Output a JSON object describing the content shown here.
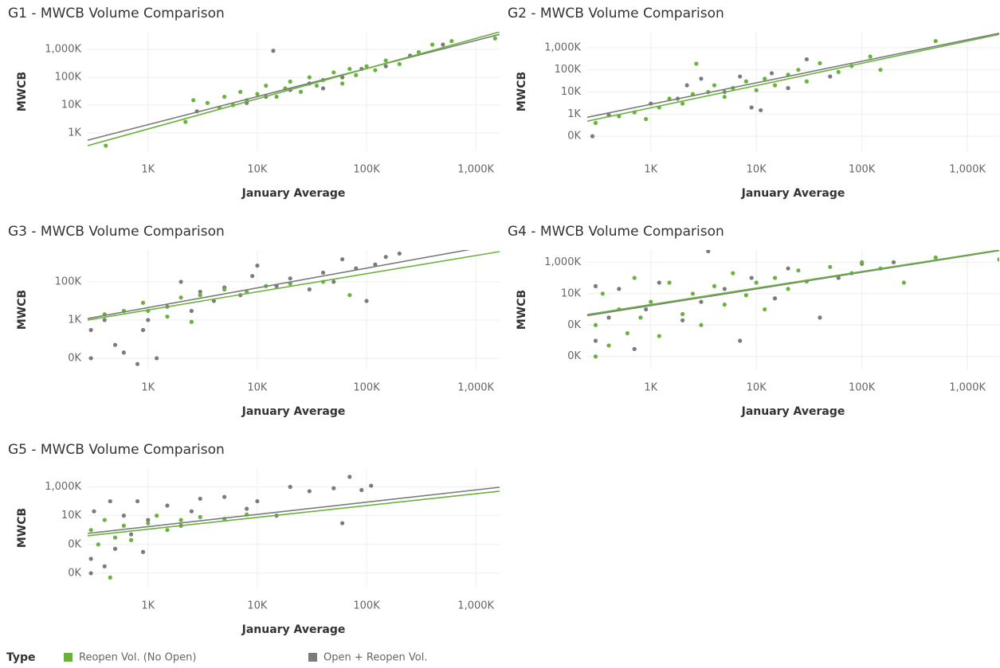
{
  "legend": {
    "title": "Type",
    "series": [
      {
        "name": "Reopen Vol. (No Open)",
        "color": "#6ab23e"
      },
      {
        "name": "Open + Reopen Vol.",
        "color": "#7b7b7b"
      }
    ]
  },
  "chart_data": [
    {
      "type": "scatter",
      "title": "G1 - MWCB Volume Comparison",
      "x_label": "January Average",
      "y_label": "MWCB",
      "xscale": "log",
      "yscale": "log",
      "grid": true,
      "xlim": [
        280,
        1650000
      ],
      "ylim": [
        220,
        4300000
      ],
      "xticks": [
        {
          "value": 1000,
          "label": "1K"
        },
        {
          "value": 10000,
          "label": "10K"
        },
        {
          "value": 100000,
          "label": "100K"
        },
        {
          "value": 1000000,
          "label": "1,000K"
        }
      ],
      "yticks": [
        {
          "value": 1000,
          "label": "1K"
        },
        {
          "value": 10000,
          "label": "10K"
        },
        {
          "value": 100000,
          "label": "100K"
        },
        {
          "value": 1000000,
          "label": "1,000K"
        }
      ],
      "series": [
        {
          "x": [
            410,
            2200,
            2600,
            3500,
            4500,
            5000,
            6000,
            7000,
            8000,
            10000,
            12000,
            15000,
            18000,
            20000,
            25000,
            30000,
            35000,
            40000,
            50000,
            60000,
            70000,
            80000,
            100000,
            120000,
            150000,
            200000,
            300000,
            400000,
            600000,
            1500000
          ],
          "values": [
            350,
            2500,
            15000,
            12000,
            8000,
            20000,
            10000,
            30000,
            15000,
            25000,
            50000,
            20000,
            40000,
            70000,
            30000,
            100000,
            50000,
            80000,
            150000,
            60000,
            200000,
            120000,
            250000,
            180000,
            400000,
            300000,
            800000,
            1500000,
            2000000,
            2500000
          ],
          "trend": {
            "x": [
              280,
              1650000
            ],
            "values": [
              350,
              4300000
            ]
          }
        },
        {
          "x": [
            2800,
            8000,
            12000,
            14000,
            20000,
            30000,
            40000,
            60000,
            90000,
            150000,
            250000,
            500000
          ],
          "values": [
            6000,
            12000,
            20000,
            900000,
            35000,
            60000,
            40000,
            100000,
            200000,
            250000,
            600000,
            1500000
          ],
          "trend": {
            "x": [
              280,
              1650000
            ],
            "values": [
              550,
              3500000
            ]
          }
        }
      ]
    },
    {
      "type": "scatter",
      "title": "G2 - MWCB Volume Comparison",
      "x_label": "January Average",
      "y_label": "MWCB",
      "xscale": "log",
      "yscale": "log",
      "grid": true,
      "xlim": [
        250,
        2000000
      ],
      "ylim": [
        21,
        5200000
      ],
      "xticks": [
        {
          "value": 1000,
          "label": "1K"
        },
        {
          "value": 10000,
          "label": "10K"
        },
        {
          "value": 100000,
          "label": "100K"
        },
        {
          "value": 1000000,
          "label": "1,000K"
        }
      ],
      "yticks": [
        {
          "value": 100,
          "label": "0K"
        },
        {
          "value": 1000,
          "label": "1K"
        },
        {
          "value": 10000,
          "label": "10K"
        },
        {
          "value": 100000,
          "label": "100K"
        },
        {
          "value": 1000000,
          "label": "1,000K"
        }
      ],
      "series": [
        {
          "x": [
            300,
            500,
            700,
            900,
            1200,
            1500,
            2000,
            2500,
            2700,
            3500,
            4000,
            5000,
            6000,
            8000,
            10000,
            12000,
            15000,
            20000,
            25000,
            30000,
            40000,
            60000,
            80000,
            120000,
            150000,
            500000
          ],
          "values": [
            400,
            800,
            1200,
            600,
            2000,
            5000,
            3000,
            8000,
            190000,
            10000,
            20000,
            6000,
            15000,
            30000,
            12000,
            40000,
            20000,
            60000,
            100000,
            30000,
            200000,
            80000,
            150000,
            400000,
            100000,
            2000000
          ],
          "trend": {
            "x": [
              250,
              2000000
            ],
            "values": [
              480,
              4000000
            ]
          }
        },
        {
          "x": [
            280,
            400,
            1000,
            1800,
            2200,
            3000,
            5000,
            7000,
            9000,
            11000,
            14000,
            20000,
            30000,
            50000
          ],
          "values": [
            100,
            900,
            3000,
            5000,
            20000,
            40000,
            10000,
            50000,
            2000,
            1500,
            70000,
            15000,
            300000,
            50000
          ],
          "trend": {
            "x": [
              250,
              2000000
            ],
            "values": [
              720,
              4500000
            ]
          }
        }
      ]
    },
    {
      "type": "scatter",
      "title": "G3 - MWCB Volume Comparison",
      "x_label": "January Average",
      "y_label": "MWCB",
      "xscale": "log",
      "yscale": "log",
      "grid": true,
      "xlim": [
        280,
        1650000
      ],
      "ylim": [
        2.6,
        4600000
      ],
      "xticks": [
        {
          "value": 1000,
          "label": "1K"
        },
        {
          "value": 10000,
          "label": "10K"
        },
        {
          "value": 100000,
          "label": "100K"
        },
        {
          "value": 1000000,
          "label": "1,000K"
        }
      ],
      "yticks": [
        {
          "value": 10,
          "label": "0K"
        },
        {
          "value": 1000,
          "label": "1K"
        },
        {
          "value": 100000,
          "label": "100K"
        }
      ],
      "series": [
        {
          "x": [
            400,
            600,
            900,
            1000,
            1500,
            2000,
            2500,
            3000,
            5000,
            8000,
            12000,
            20000,
            40000,
            70000
          ],
          "values": [
            2000,
            3000,
            8000,
            3000,
            1500,
            15000,
            800,
            20000,
            40000,
            30000,
            60000,
            80000,
            100000,
            20000
          ],
          "trend": {
            "x": [
              280,
              1650000
            ],
            "values": [
              1000,
              3800000
            ]
          }
        },
        {
          "x": [
            300,
            300,
            400,
            500,
            600,
            800,
            900,
            1000,
            1200,
            1500,
            2000,
            2500,
            3000,
            4000,
            5000,
            7000,
            9000,
            10000,
            15000,
            20000,
            30000,
            40000,
            50000,
            60000,
            80000,
            100000,
            120000,
            150000,
            200000
          ],
          "values": [
            10,
            300,
            1000,
            50,
            20,
            5,
            300,
            1000,
            10,
            5000,
            100000,
            3000,
            30000,
            10000,
            50000,
            20000,
            200000,
            700000,
            60000,
            150000,
            40000,
            300000,
            100000,
            1500000,
            500000,
            10000,
            800000,
            2000000,
            3000000
          ],
          "trend": {
            "x": [
              280,
              900000
            ],
            "values": [
              1200,
              5000000
            ]
          }
        }
      ]
    },
    {
      "type": "scatter",
      "title": "G4 - MWCB Volume Comparison",
      "x_label": "January Average",
      "y_label": "MWCB",
      "xscale": "log",
      "yscale": "log",
      "grid": true,
      "xlim": [
        250,
        2000000
      ],
      "ylim": [
        0.15,
        6000000
      ],
      "xticks": [
        {
          "value": 1000,
          "label": "1K"
        },
        {
          "value": 10000,
          "label": "10K"
        },
        {
          "value": 100000,
          "label": "100K"
        },
        {
          "value": 1000000,
          "label": "1,000K"
        }
      ],
      "yticks": [
        {
          "value": 1,
          "label": "0K"
        },
        {
          "value": 100,
          "label": "0K"
        },
        {
          "value": 10000,
          "label": "10K"
        },
        {
          "value": 1000000,
          "label": "1,000K"
        }
      ],
      "series": [
        {
          "x": [
            300,
            300,
            350,
            400,
            500,
            600,
            700,
            800,
            1000,
            1200,
            1500,
            2000,
            2500,
            3000,
            4000,
            5000,
            6000,
            8000,
            10000,
            12000,
            15000,
            20000,
            25000,
            30000,
            50000,
            80000,
            100000,
            150000,
            250000,
            500000,
            2000000
          ],
          "values": [
            1,
            100,
            10000,
            5,
            1000,
            30,
            100000,
            300,
            3000,
            20,
            50000,
            500,
            10000,
            100,
            30000,
            2000,
            200000,
            8000,
            50000,
            1000,
            100000,
            20000,
            300000,
            60000,
            500000,
            200000,
            1000000,
            400000,
            50000,
            2000000,
            1500000
          ],
          "trend": {
            "x": [
              250,
              2000000
            ],
            "values": [
              470,
              6000000
            ]
          }
        },
        {
          "x": [
            300,
            300,
            400,
            500,
            700,
            900,
            1200,
            2000,
            3000,
            3500,
            5000,
            7000,
            9000,
            15000,
            20000,
            40000,
            60000,
            100000,
            200000
          ],
          "values": [
            10,
            30000,
            300,
            20000,
            3,
            1000,
            50000,
            200,
            3000,
            5000000,
            20000,
            10,
            100000,
            5000,
            400000,
            300,
            100000,
            800000,
            1000000
          ],
          "trend": {
            "x": [
              250,
              2000000
            ],
            "values": [
              400,
              5500000
            ]
          }
        }
      ]
    },
    {
      "type": "scatter",
      "title": "G5 - MWCB Volume Comparison",
      "x_label": "January Average",
      "y_label": "MWCB",
      "xscale": "log",
      "yscale": "log",
      "grid": true,
      "xlim": [
        280,
        1650000
      ],
      "ylim": [
        0.1,
        20000000
      ],
      "xticks": [
        {
          "value": 1000,
          "label": "1K"
        },
        {
          "value": 10000,
          "label": "10K"
        },
        {
          "value": 100000,
          "label": "100K"
        },
        {
          "value": 1000000,
          "label": "1,000K"
        }
      ],
      "yticks": [
        {
          "value": 1,
          "label": "0K"
        },
        {
          "value": 100,
          "label": "0K"
        },
        {
          "value": 10000,
          "label": "10K"
        },
        {
          "value": 1000000,
          "label": "1,000K"
        }
      ],
      "series": [
        {
          "x": [
            300,
            350,
            400,
            450,
            500,
            600,
            700,
            1000,
            1200,
            1500,
            2000,
            3000,
            5000,
            8000
          ],
          "values": [
            1000,
            100,
            5000,
            0.5,
            300,
            2000,
            200,
            3000,
            10000,
            1000,
            5000,
            8000,
            6000,
            12000
          ],
          "trend": {
            "x": [
              280,
              1650000
            ],
            "values": [
              400,
              500000
            ]
          }
        },
        {
          "x": [
            300,
            300,
            320,
            400,
            450,
            500,
            600,
            700,
            800,
            900,
            1000,
            1500,
            2000,
            2500,
            3000,
            5000,
            8000,
            10000,
            15000,
            20000,
            30000,
            50000,
            60000,
            70000,
            90000,
            110000
          ],
          "values": [
            10,
            1,
            20000,
            3,
            100000,
            50,
            10000,
            500,
            100000,
            30,
            5000,
            50000,
            2000,
            20000,
            150000,
            200000,
            30000,
            100000,
            10000,
            1000000,
            500000,
            800000,
            3000,
            5000000,
            600000,
            1200000
          ],
          "trend": {
            "x": [
              280,
              1650000
            ],
            "values": [
              580,
              940000
            ]
          }
        }
      ]
    }
  ]
}
